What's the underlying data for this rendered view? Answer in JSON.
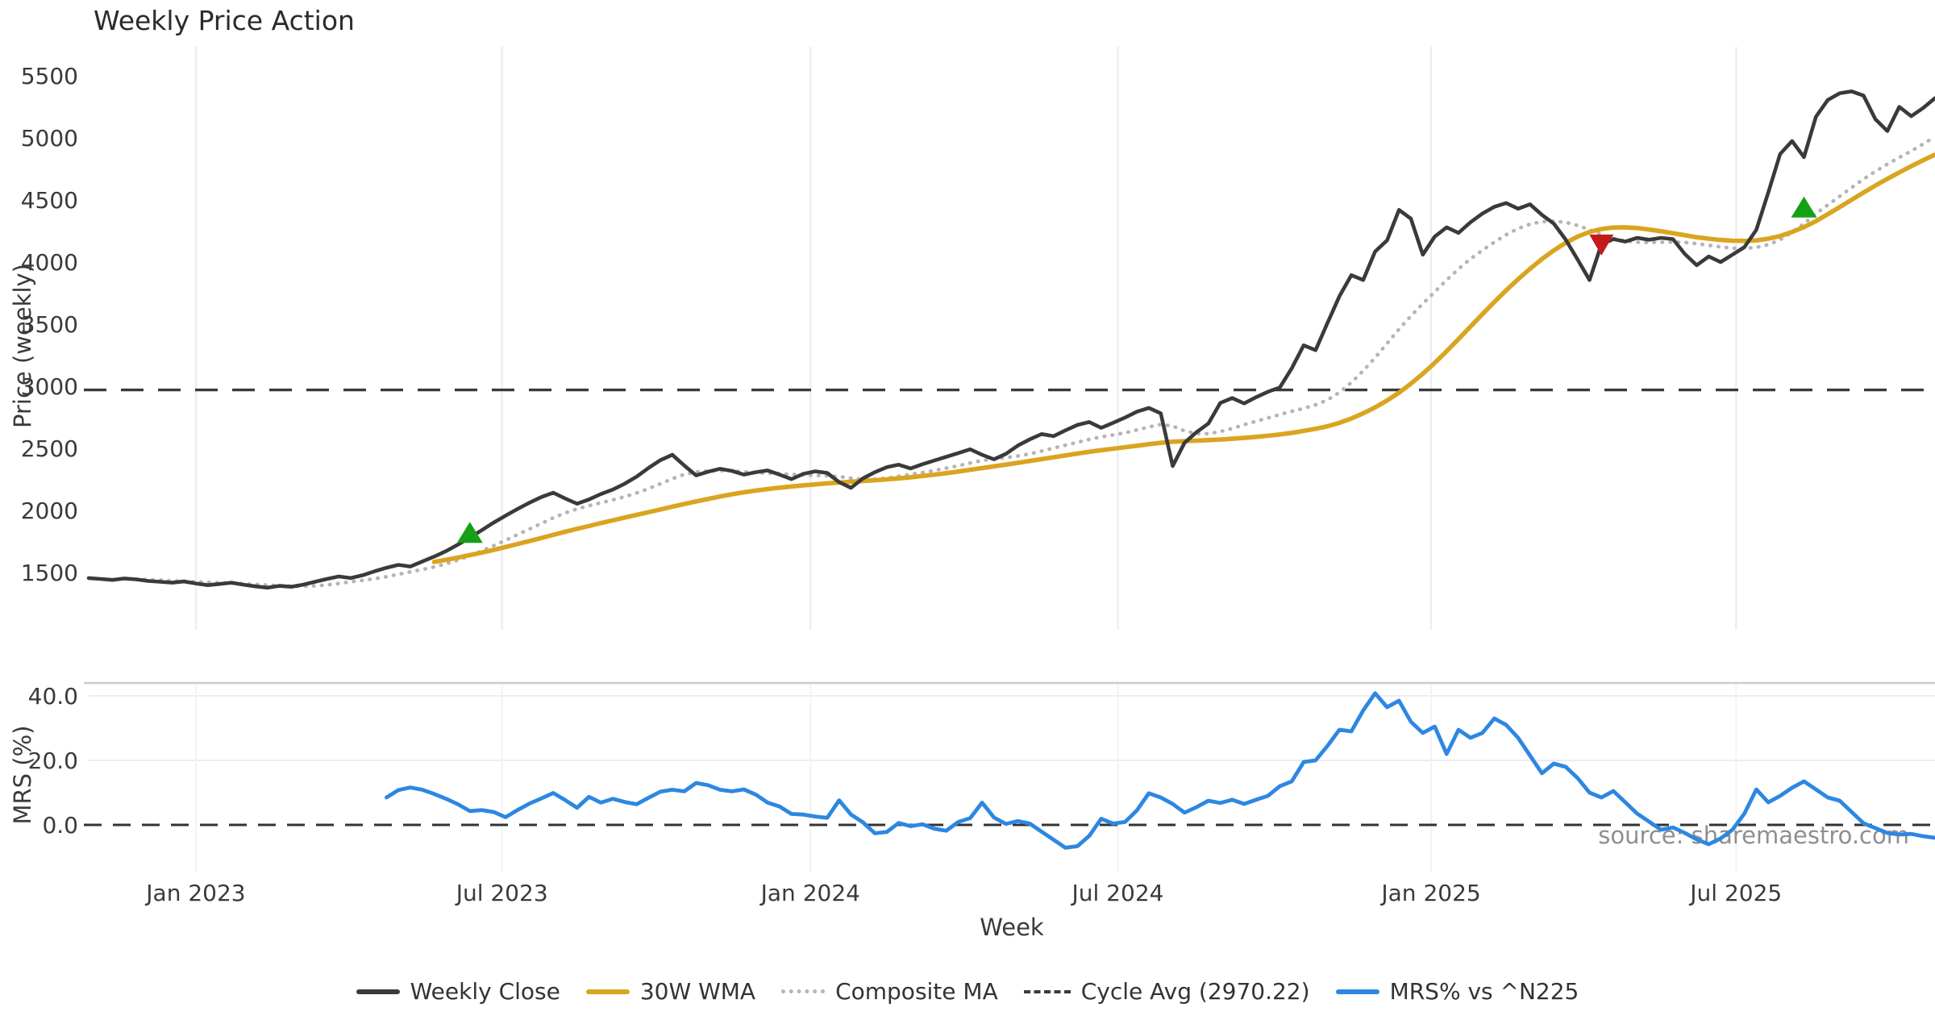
{
  "title": "Weekly Price Action",
  "axes": {
    "price_label": "Price (weekly)",
    "mrs_label": "MRS (%)",
    "x_label": "Week"
  },
  "watermark": "source: sharemaestro.com",
  "colors": {
    "close": "#3a3a3a",
    "wma30": "#d9a520",
    "composite": "#b5b5b5",
    "cycle": "#3b3b3b",
    "mrs": "#2d87e2",
    "buy": "#16a016",
    "sell": "#c41a1a",
    "grid": "#e9edf3",
    "grid_faint": "#f1f3f7",
    "spine": "#c6ccd4",
    "tick_text": "#3a3a3a",
    "watermark_text": "#8f8f8f",
    "background": "#ffffff"
  },
  "chart_data": {
    "type": "line",
    "title": "Weekly Price Action",
    "xlabel": "Week",
    "x_unit": "week_index_from_2022-11",
    "grid": "vertical-light",
    "legend_position": "bottom-center",
    "x_ticks": [
      {
        "week": 9.0,
        "label": "Jan 2023"
      },
      {
        "week": 34.7,
        "label": "Jul 2023"
      },
      {
        "week": 60.6,
        "label": "Jan 2024"
      },
      {
        "week": 86.4,
        "label": "Jul 2024"
      },
      {
        "week": 112.7,
        "label": "Jan 2025"
      },
      {
        "week": 138.3,
        "label": "Jul 2025"
      }
    ],
    "panels": [
      {
        "name": "price",
        "ylabel": "Price (weekly)",
        "yticks": [
          1500,
          2000,
          2500,
          3000,
          3500,
          4000,
          4500,
          5000,
          5500
        ],
        "ylim": [
          1030,
          5750
        ],
        "cycle_avg": 2970.22,
        "series": [
          {
            "name": "Weekly Close",
            "color": "#3a3a3a",
            "style": "solid",
            "width": 4.6,
            "start_week": 0,
            "values": [
              1455,
              1448,
              1440,
              1452,
              1445,
              1432,
              1425,
              1418,
              1428,
              1412,
              1398,
              1408,
              1418,
              1402,
              1388,
              1378,
              1392,
              1385,
              1402,
              1425,
              1448,
              1468,
              1455,
              1478,
              1510,
              1538,
              1562,
              1548,
              1588,
              1628,
              1672,
              1725,
              1782,
              1840,
              1902,
              1958,
              2012,
              2062,
              2108,
              2142,
              2096,
              2054,
              2088,
              2132,
              2168,
              2215,
              2272,
              2342,
              2405,
              2448,
              2362,
              2282,
              2312,
              2335,
              2318,
              2288,
              2308,
              2322,
              2288,
              2252,
              2295,
              2315,
              2302,
              2228,
              2182,
              2258,
              2308,
              2348,
              2368,
              2338,
              2372,
              2402,
              2432,
              2462,
              2492,
              2448,
              2412,
              2455,
              2522,
              2572,
              2615,
              2598,
              2645,
              2688,
              2712,
              2665,
              2705,
              2748,
              2795,
              2825,
              2782,
              2358,
              2545,
              2630,
              2700,
              2865,
              2905,
              2862,
              2912,
              2955,
              2990,
              3145,
              3330,
              3290,
              3510,
              3725,
              3895,
              3855,
              4085,
              4175,
              4420,
              4350,
              4060,
              4205,
              4280,
              4235,
              4320,
              4390,
              4445,
              4475,
              4430,
              4465,
              4380,
              4310,
              4180,
              4020,
              3855,
              4143,
              4185,
              4165,
              4195,
              4180,
              4195,
              4185,
              4065,
              3975,
              4045,
              4000,
              4060,
              4120,
              4260,
              4560,
              4870,
              4975,
              4845,
              5170,
              5305,
              5360,
              5375,
              5340,
              5150,
              5055,
              5250,
              5175,
              5240,
              5320
            ]
          },
          {
            "name": "30W WMA",
            "color": "#d9a520",
            "style": "solid",
            "width": 5.6,
            "start_week": 29,
            "values": [
              1585,
              1602,
              1620,
              1640,
              1660,
              1682,
              1705,
              1729,
              1753,
              1778,
              1803,
              1828,
              1852,
              1875,
              1898,
              1920,
              1942,
              1964,
              1986,
              2008,
              2030,
              2052,
              2072,
              2092,
              2112,
              2130,
              2146,
              2160,
              2172,
              2183,
              2193,
              2202,
              2210,
              2218,
              2225,
              2231,
              2237,
              2243,
              2250,
              2258,
              2267,
              2277,
              2288,
              2300,
              2313,
              2327,
              2341,
              2355,
              2369,
              2383,
              2398,
              2413,
              2428,
              2443,
              2458,
              2472,
              2485,
              2497,
              2509,
              2521,
              2533,
              2544,
              2553,
              2558,
              2562,
              2566,
              2571,
              2577,
              2584,
              2592,
              2601,
              2612,
              2625,
              2640,
              2657,
              2678,
              2705,
              2740,
              2782,
              2830,
              2885,
              2948,
              3020,
              3100,
              3188,
              3282,
              3380,
              3480,
              3580,
              3678,
              3772,
              3862,
              3946,
              4024,
              4094,
              4155,
              4205,
              4242,
              4266,
              4278,
              4280,
              4274,
              4262,
              4248,
              4232,
              4216,
              4200,
              4188,
              4178,
              4172,
              4170,
              4175,
              4188,
              4210,
              4242,
              4282,
              4330,
              4385,
              4443,
              4502,
              4560,
              4616,
              4670,
              4722,
              4772,
              4820,
              4865
            ]
          },
          {
            "name": "Composite MA",
            "color": "#b5b5b5",
            "style": "dotted",
            "width": 4.6,
            "start_week": 4,
            "values": [
              1446,
              1443,
              1439,
              1434,
              1430,
              1426,
              1421,
              1416,
              1413,
              1410,
              1405,
              1399,
              1394,
              1390,
              1389,
              1392,
              1400,
              1412,
              1425,
              1437,
              1450,
              1466,
              1485,
              1505,
              1524,
              1545,
              1570,
              1600,
              1635,
              1674,
              1716,
              1760,
              1805,
              1850,
              1895,
              1940,
              1980,
              2012,
              2038,
              2062,
              2085,
              2110,
              2140,
              2175,
              2215,
              2255,
              2290,
              2310,
              2318,
              2320,
              2318,
              2312,
              2305,
              2300,
              2296,
              2290,
              2285,
              2282,
              2280,
              2272,
              2260,
              2252,
              2252,
              2260,
              2275,
              2290,
              2305,
              2322,
              2340,
              2360,
              2382,
              2402,
              2415,
              2425,
              2438,
              2455,
              2478,
              2502,
              2525,
              2548,
              2572,
              2592,
              2608,
              2625,
              2648,
              2672,
              2692,
              2680,
              2640,
              2618,
              2618,
              2635,
              2660,
              2690,
              2718,
              2745,
              2772,
              2798,
              2822,
              2850,
              2890,
              2950,
              3030,
              3125,
              3230,
              3345,
              3460,
              3565,
              3665,
              3760,
              3855,
              3945,
              4025,
              4095,
              4160,
              4220,
              4270,
              4305,
              4325,
              4330,
              4320,
              4295,
              4260,
              4220,
              4190,
              4170,
              4160,
              4158,
              4160,
              4162,
              4158,
              4148,
              4135,
              4122,
              4112,
              4110,
              4118,
              4140,
              4180,
              4240,
              4310,
              4390,
              4460,
              4530,
              4600,
              4668,
              4730,
              4788,
              4842,
              4895,
              4950,
              5010
            ]
          },
          {
            "name": "Cycle Avg (2970.22)",
            "color": "#3b3b3b",
            "style": "dashed",
            "width": 3.4,
            "value": 2970.22
          }
        ],
        "markers": [
          {
            "type": "buy",
            "shape": "triangle-up",
            "color": "#16a016",
            "week": 32,
            "value": 1810
          },
          {
            "type": "sell",
            "shape": "triangle-down",
            "color": "#c41a1a",
            "week": 127,
            "value": 4150
          },
          {
            "type": "buy",
            "shape": "triangle-up",
            "color": "#16a016",
            "week": 144,
            "value": 4430
          }
        ]
      },
      {
        "name": "mrs",
        "ylabel": "MRS (%)",
        "yticks": [
          0,
          20,
          40
        ],
        "ytick_labels": [
          "0.0",
          "20.0",
          "40.0"
        ],
        "ylim": [
          -14,
          44
        ],
        "zero_line": 0.0,
        "series": [
          {
            "name": "MRS% vs ^N225",
            "color": "#2d87e2",
            "style": "solid",
            "width": 4.8,
            "start_week": 25,
            "values": [
              8.5,
              10.8,
              11.6,
              10.9,
              9.6,
              8.1,
              6.4,
              4.3,
              4.6,
              4.0,
              2.4,
              4.6,
              6.6,
              8.2,
              9.9,
              7.7,
              5.3,
              8.7,
              6.9,
              8.1,
              7.1,
              6.4,
              8.4,
              10.3,
              10.9,
              10.4,
              13.0,
              12.3,
              10.9,
              10.4,
              11.0,
              9.4,
              6.9,
              5.7,
              3.4,
              3.2,
              2.6,
              2.2,
              7.6,
              3.2,
              0.8,
              -2.6,
              -2.2,
              0.6,
              -0.4,
              0.2,
              -1.2,
              -1.8,
              0.9,
              2.1,
              6.9,
              2.3,
              0.3,
              1.2,
              0.4,
              -2.1,
              -4.6,
              -7.1,
              -6.6,
              -3.4,
              1.9,
              0.4,
              0.9,
              4.5,
              9.8,
              8.5,
              6.5,
              3.8,
              5.5,
              7.5,
              6.8,
              7.8,
              6.5,
              7.8,
              9.0,
              12.0,
              13.5,
              19.5,
              20.0,
              24.5,
              29.5,
              29.0,
              35.5,
              40.8,
              36.5,
              38.5,
              32.0,
              28.5,
              30.5,
              22.0,
              29.5,
              27.0,
              28.5,
              33.0,
              31.0,
              27.0,
              21.5,
              16.0,
              19.0,
              18.0,
              14.5,
              10.0,
              8.5,
              10.5,
              7.0,
              3.5,
              1.0,
              -1.5,
              -0.8,
              -2.5,
              -4.5,
              -6.0,
              -4.2,
              -1.5,
              3.5,
              11.0,
              7.0,
              9.0,
              11.5,
              13.5,
              11.0,
              8.5,
              7.5,
              4.0,
              0.5,
              -1.0,
              -2.5,
              -3.0,
              -2.8,
              -3.5,
              -4.0
            ]
          }
        ]
      }
    ],
    "legend": [
      {
        "label": "Weekly Close",
        "style": "solid",
        "color": "#3a3a3a"
      },
      {
        "label": "30W WMA",
        "style": "solid",
        "color": "#d9a520"
      },
      {
        "label": "Composite MA",
        "style": "dotted",
        "color": "#b5b5b5"
      },
      {
        "label": "Cycle Avg (2970.22)",
        "style": "dashed",
        "color": "#3b3b3b"
      },
      {
        "label": "MRS% vs ^N225",
        "style": "solid",
        "color": "#2d87e2"
      }
    ]
  }
}
